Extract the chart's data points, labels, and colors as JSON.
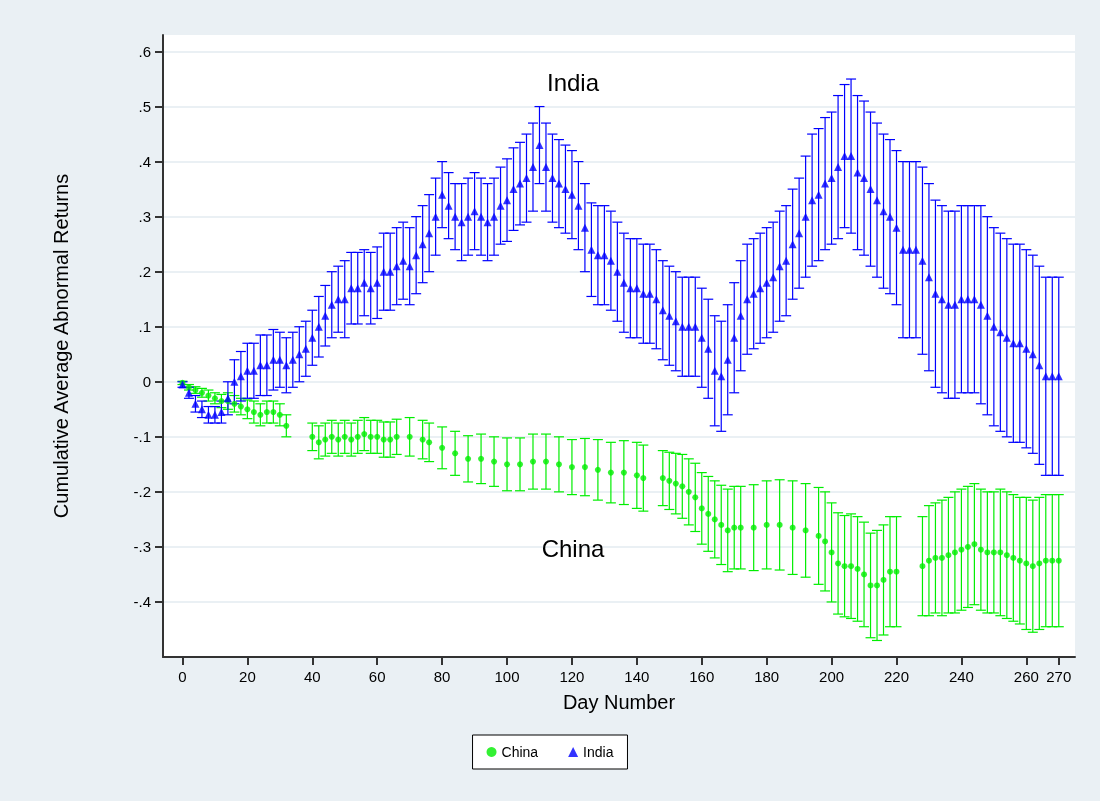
{
  "chart_data": {
    "type": "scatter",
    "xlabel": "Day Number",
    "ylabel": "Cumulative Average Abnormal Returns",
    "xlim": [
      -6,
      275
    ],
    "xticks": [
      0,
      20,
      40,
      60,
      80,
      100,
      120,
      140,
      160,
      180,
      200,
      220,
      240,
      260,
      270
    ],
    "ylim": [
      -0.5,
      0.63
    ],
    "yticks": [
      {
        "value": -0.4,
        "label": "-.4"
      },
      {
        "value": -0.3,
        "label": "-.3"
      },
      {
        "value": -0.2,
        "label": "-.2"
      },
      {
        "value": -0.1,
        "label": "-.1"
      },
      0,
      {
        "value": 0.1,
        "label": ".1"
      },
      {
        "value": 0.2,
        "label": ".2"
      },
      {
        "value": 0.3,
        "label": ".3"
      },
      {
        "value": 0.4,
        "label": ".4"
      },
      {
        "value": 0.5,
        "label": ".5"
      },
      {
        "value": 0.6,
        "label": ".6"
      }
    ],
    "grid": "y",
    "legend": "bottom",
    "annotations": [
      "India",
      "China"
    ],
    "series": [
      {
        "name": "China",
        "color": "#00ee00",
        "marker": "circle",
        "x": [
          0,
          2,
          4,
          6,
          8,
          10,
          12,
          14,
          16,
          18,
          20,
          22,
          24,
          26,
          28,
          30,
          32,
          40,
          42,
          44,
          46,
          48,
          50,
          52,
          54,
          56,
          58,
          60,
          62,
          64,
          66,
          70,
          74,
          76,
          80,
          84,
          88,
          92,
          96,
          100,
          104,
          108,
          112,
          116,
          120,
          124,
          128,
          132,
          136,
          140,
          142,
          148,
          150,
          152,
          154,
          156,
          158,
          160,
          162,
          164,
          166,
          168,
          170,
          172,
          176,
          180,
          184,
          188,
          192,
          196,
          198,
          200,
          202,
          204,
          206,
          208,
          210,
          212,
          214,
          216,
          218,
          220,
          228,
          230,
          232,
          234,
          236,
          238,
          240,
          242,
          244,
          246,
          248,
          250,
          252,
          254,
          256,
          258,
          260,
          262,
          264,
          266,
          268,
          270
        ],
        "values": [
          -0.002,
          -0.01,
          -0.015,
          -0.02,
          -0.025,
          -0.03,
          -0.035,
          -0.035,
          -0.04,
          -0.045,
          -0.05,
          -0.055,
          -0.06,
          -0.055,
          -0.055,
          -0.06,
          -0.08,
          -0.1,
          -0.11,
          -0.105,
          -0.1,
          -0.105,
          -0.1,
          -0.105,
          -0.1,
          -0.095,
          -0.1,
          -0.1,
          -0.105,
          -0.105,
          -0.1,
          -0.1,
          -0.105,
          -0.11,
          -0.12,
          -0.13,
          -0.14,
          -0.14,
          -0.145,
          -0.15,
          -0.15,
          -0.145,
          -0.145,
          -0.15,
          -0.155,
          -0.155,
          -0.16,
          -0.165,
          -0.165,
          -0.17,
          -0.175,
          -0.175,
          -0.18,
          -0.185,
          -0.19,
          -0.2,
          -0.21,
          -0.23,
          -0.24,
          -0.25,
          -0.26,
          -0.27,
          -0.265,
          -0.265,
          -0.265,
          -0.26,
          -0.26,
          -0.265,
          -0.27,
          -0.28,
          -0.29,
          -0.31,
          -0.33,
          -0.335,
          -0.335,
          -0.34,
          -0.35,
          -0.37,
          -0.37,
          -0.36,
          -0.345,
          -0.345,
          -0.335,
          -0.325,
          -0.32,
          -0.32,
          -0.315,
          -0.31,
          -0.305,
          -0.3,
          -0.295,
          -0.305,
          -0.31,
          -0.31,
          -0.31,
          -0.315,
          -0.32,
          -0.325,
          -0.33,
          -0.335,
          -0.33,
          -0.325,
          -0.325,
          -0.325
        ],
        "errors": [
          0.003,
          0.005,
          0.006,
          0.008,
          0.01,
          0.01,
          0.012,
          0.015,
          0.015,
          0.015,
          0.017,
          0.02,
          0.02,
          0.02,
          0.02,
          0.02,
          0.02,
          0.025,
          0.03,
          0.03,
          0.03,
          0.03,
          0.03,
          0.03,
          0.03,
          0.03,
          0.03,
          0.03,
          0.032,
          0.032,
          0.032,
          0.035,
          0.035,
          0.035,
          0.038,
          0.04,
          0.042,
          0.045,
          0.045,
          0.048,
          0.048,
          0.05,
          0.05,
          0.05,
          0.05,
          0.052,
          0.055,
          0.055,
          0.058,
          0.06,
          0.06,
          0.05,
          0.052,
          0.055,
          0.058,
          0.06,
          0.062,
          0.065,
          0.068,
          0.07,
          0.072,
          0.075,
          0.075,
          0.075,
          0.078,
          0.08,
          0.082,
          0.085,
          0.085,
          0.088,
          0.09,
          0.09,
          0.092,
          0.092,
          0.095,
          0.095,
          0.095,
          0.095,
          0.1,
          0.1,
          0.1,
          0.1,
          0.09,
          0.1,
          0.1,
          0.105,
          0.105,
          0.11,
          0.11,
          0.11,
          0.11,
          0.11,
          0.11,
          0.11,
          0.115,
          0.115,
          0.115,
          0.115,
          0.12,
          0.12,
          0.12,
          0.12,
          0.12,
          0.12
        ]
      },
      {
        "name": "India",
        "color": "#0000ff",
        "marker": "triangle",
        "x": [
          0,
          2,
          4,
          6,
          8,
          10,
          12,
          14,
          16,
          18,
          20,
          22,
          24,
          26,
          28,
          30,
          32,
          34,
          36,
          38,
          40,
          42,
          44,
          46,
          48,
          50,
          52,
          54,
          56,
          58,
          60,
          62,
          64,
          66,
          68,
          70,
          72,
          74,
          76,
          78,
          80,
          82,
          84,
          86,
          88,
          90,
          92,
          94,
          96,
          98,
          100,
          102,
          104,
          106,
          108,
          110,
          112,
          114,
          116,
          118,
          120,
          122,
          124,
          126,
          128,
          130,
          132,
          134,
          136,
          138,
          140,
          142,
          144,
          146,
          148,
          150,
          152,
          154,
          156,
          158,
          160,
          162,
          164,
          166,
          168,
          170,
          172,
          174,
          176,
          178,
          180,
          182,
          184,
          186,
          188,
          190,
          192,
          194,
          196,
          198,
          200,
          202,
          204,
          206,
          208,
          210,
          212,
          214,
          216,
          218,
          220,
          222,
          224,
          226,
          228,
          230,
          232,
          234,
          236,
          238,
          240,
          242,
          244,
          246,
          248,
          250,
          252,
          254,
          256,
          258,
          260,
          262,
          264,
          266,
          268,
          270
        ],
        "values": [
          -0.005,
          -0.02,
          -0.04,
          -0.05,
          -0.06,
          -0.06,
          -0.055,
          -0.03,
          0.0,
          0.01,
          0.02,
          0.02,
          0.03,
          0.03,
          0.04,
          0.04,
          0.03,
          0.04,
          0.05,
          0.06,
          0.08,
          0.1,
          0.12,
          0.14,
          0.15,
          0.15,
          0.17,
          0.17,
          0.18,
          0.17,
          0.18,
          0.2,
          0.2,
          0.21,
          0.22,
          0.21,
          0.23,
          0.25,
          0.27,
          0.3,
          0.34,
          0.32,
          0.3,
          0.29,
          0.3,
          0.31,
          0.3,
          0.29,
          0.3,
          0.32,
          0.33,
          0.35,
          0.36,
          0.37,
          0.39,
          0.43,
          0.39,
          0.37,
          0.36,
          0.35,
          0.34,
          0.32,
          0.28,
          0.24,
          0.23,
          0.23,
          0.22,
          0.2,
          0.18,
          0.17,
          0.17,
          0.16,
          0.16,
          0.15,
          0.13,
          0.12,
          0.11,
          0.1,
          0.1,
          0.1,
          0.08,
          0.06,
          0.02,
          0.01,
          0.04,
          0.08,
          0.12,
          0.15,
          0.16,
          0.17,
          0.18,
          0.19,
          0.21,
          0.22,
          0.25,
          0.27,
          0.3,
          0.33,
          0.34,
          0.36,
          0.37,
          0.39,
          0.41,
          0.41,
          0.38,
          0.37,
          0.35,
          0.33,
          0.31,
          0.3,
          0.28,
          0.24,
          0.24,
          0.24,
          0.22,
          0.19,
          0.16,
          0.15,
          0.14,
          0.14,
          0.15,
          0.15,
          0.15,
          0.14,
          0.12,
          0.1,
          0.09,
          0.08,
          0.07,
          0.07,
          0.06,
          0.05,
          0.03,
          0.01,
          0.01,
          0.01
        ],
        "errors": [
          0.005,
          0.01,
          0.015,
          0.015,
          0.015,
          0.015,
          0.02,
          0.03,
          0.04,
          0.045,
          0.05,
          0.05,
          0.055,
          0.055,
          0.055,
          0.05,
          0.05,
          0.05,
          0.05,
          0.05,
          0.05,
          0.055,
          0.055,
          0.06,
          0.06,
          0.07,
          0.065,
          0.065,
          0.06,
          0.065,
          0.065,
          0.07,
          0.07,
          0.07,
          0.07,
          0.07,
          0.07,
          0.07,
          0.07,
          0.07,
          0.06,
          0.06,
          0.06,
          0.07,
          0.07,
          0.07,
          0.07,
          0.07,
          0.07,
          0.07,
          0.075,
          0.075,
          0.075,
          0.08,
          0.08,
          0.07,
          0.08,
          0.08,
          0.08,
          0.08,
          0.08,
          0.08,
          0.08,
          0.085,
          0.09,
          0.09,
          0.09,
          0.09,
          0.09,
          0.09,
          0.09,
          0.09,
          0.09,
          0.09,
          0.09,
          0.09,
          0.09,
          0.09,
          0.09,
          0.09,
          0.09,
          0.09,
          0.1,
          0.1,
          0.1,
          0.1,
          0.1,
          0.1,
          0.1,
          0.1,
          0.1,
          0.1,
          0.1,
          0.1,
          0.1,
          0.1,
          0.11,
          0.12,
          0.12,
          0.12,
          0.12,
          0.13,
          0.13,
          0.14,
          0.14,
          0.14,
          0.14,
          0.14,
          0.14,
          0.14,
          0.14,
          0.16,
          0.16,
          0.16,
          0.17,
          0.17,
          0.17,
          0.17,
          0.17,
          0.17,
          0.17,
          0.17,
          0.17,
          0.18,
          0.18,
          0.18,
          0.18,
          0.18,
          0.18,
          0.18,
          0.18,
          0.18,
          0.18,
          0.18,
          0.18,
          0.18
        ]
      }
    ]
  }
}
